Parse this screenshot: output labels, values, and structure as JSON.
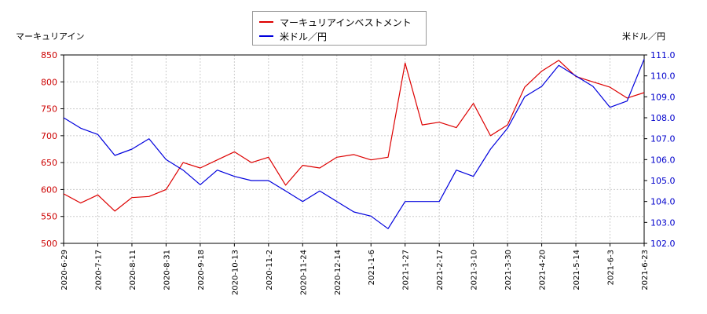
{
  "chart_data": {
    "type": "line",
    "left_axis_title": "マーキュリアイン",
    "right_axis_title": "米ドル／円",
    "legend": [
      {
        "name": "マーキュリアインベストメント",
        "color": "#dd0000"
      },
      {
        "name": "米ドル／円",
        "color": "#0000dd"
      }
    ],
    "legend_position": "top-center",
    "grid": true,
    "x_tick_labels": [
      "2020-6-29",
      "2020-7-17",
      "2020-8-11",
      "2020-8-31",
      "2020-9-18",
      "2020-10-13",
      "2020-11-2",
      "2020-11-24",
      "2020-12-14",
      "2021-1-6",
      "2021-1-27",
      "2021-2-17",
      "2021-3-10",
      "2021-3-30",
      "2021-4-20",
      "2021-5-14",
      "2021-6-3",
      "2021-6-23"
    ],
    "left_ylim": [
      500,
      850
    ],
    "left_ticks": [
      "500",
      "550",
      "600",
      "650",
      "700",
      "750",
      "800",
      "850"
    ],
    "right_ylim": [
      102.0,
      111.0
    ],
    "right_ticks": [
      "102.0",
      "103.0",
      "104.0",
      "105.0",
      "106.0",
      "107.0",
      "108.0",
      "109.0",
      "110.0",
      "111.0"
    ],
    "series": [
      {
        "name": "マーキュリアインベストメント",
        "axis": "left",
        "color": "#dd0000",
        "x": [
          0,
          0.5,
          1,
          1.5,
          2,
          2.5,
          3,
          3.5,
          4,
          4.5,
          5,
          5.5,
          6,
          6.5,
          7,
          7.5,
          8,
          8.5,
          9,
          9.5,
          10,
          10.5,
          11,
          11.5,
          12,
          12.5,
          13,
          13.5,
          14,
          14.5,
          15,
          15.5,
          16,
          16.5,
          17
        ],
        "values": [
          592,
          575,
          590,
          560,
          585,
          587,
          600,
          650,
          640,
          655,
          670,
          650,
          660,
          608,
          645,
          640,
          660,
          665,
          655,
          660,
          835,
          720,
          725,
          715,
          760,
          700,
          720,
          790,
          820,
          840,
          810,
          800,
          790,
          770,
          780
        ]
      },
      {
        "name": "米ドル／円",
        "axis": "right",
        "color": "#0000dd",
        "x": [
          0,
          0.5,
          1,
          1.5,
          2,
          2.5,
          3,
          3.5,
          4,
          4.5,
          5,
          5.5,
          6,
          6.5,
          7,
          7.5,
          8,
          8.5,
          9,
          9.5,
          10,
          10.5,
          11,
          11.5,
          12,
          12.5,
          13,
          13.5,
          14,
          14.5,
          15,
          15.5,
          16,
          16.5,
          17
        ],
        "values": [
          108.0,
          107.5,
          107.2,
          106.2,
          106.5,
          107.0,
          106.0,
          105.5,
          104.8,
          105.5,
          105.2,
          105.0,
          105.0,
          104.5,
          104.0,
          104.5,
          104.0,
          103.5,
          103.3,
          102.7,
          104.0,
          104.0,
          104.0,
          105.5,
          105.2,
          106.5,
          107.5,
          109.0,
          109.5,
          110.5,
          110.0,
          109.5,
          108.5,
          108.8,
          110.8
        ]
      }
    ]
  }
}
